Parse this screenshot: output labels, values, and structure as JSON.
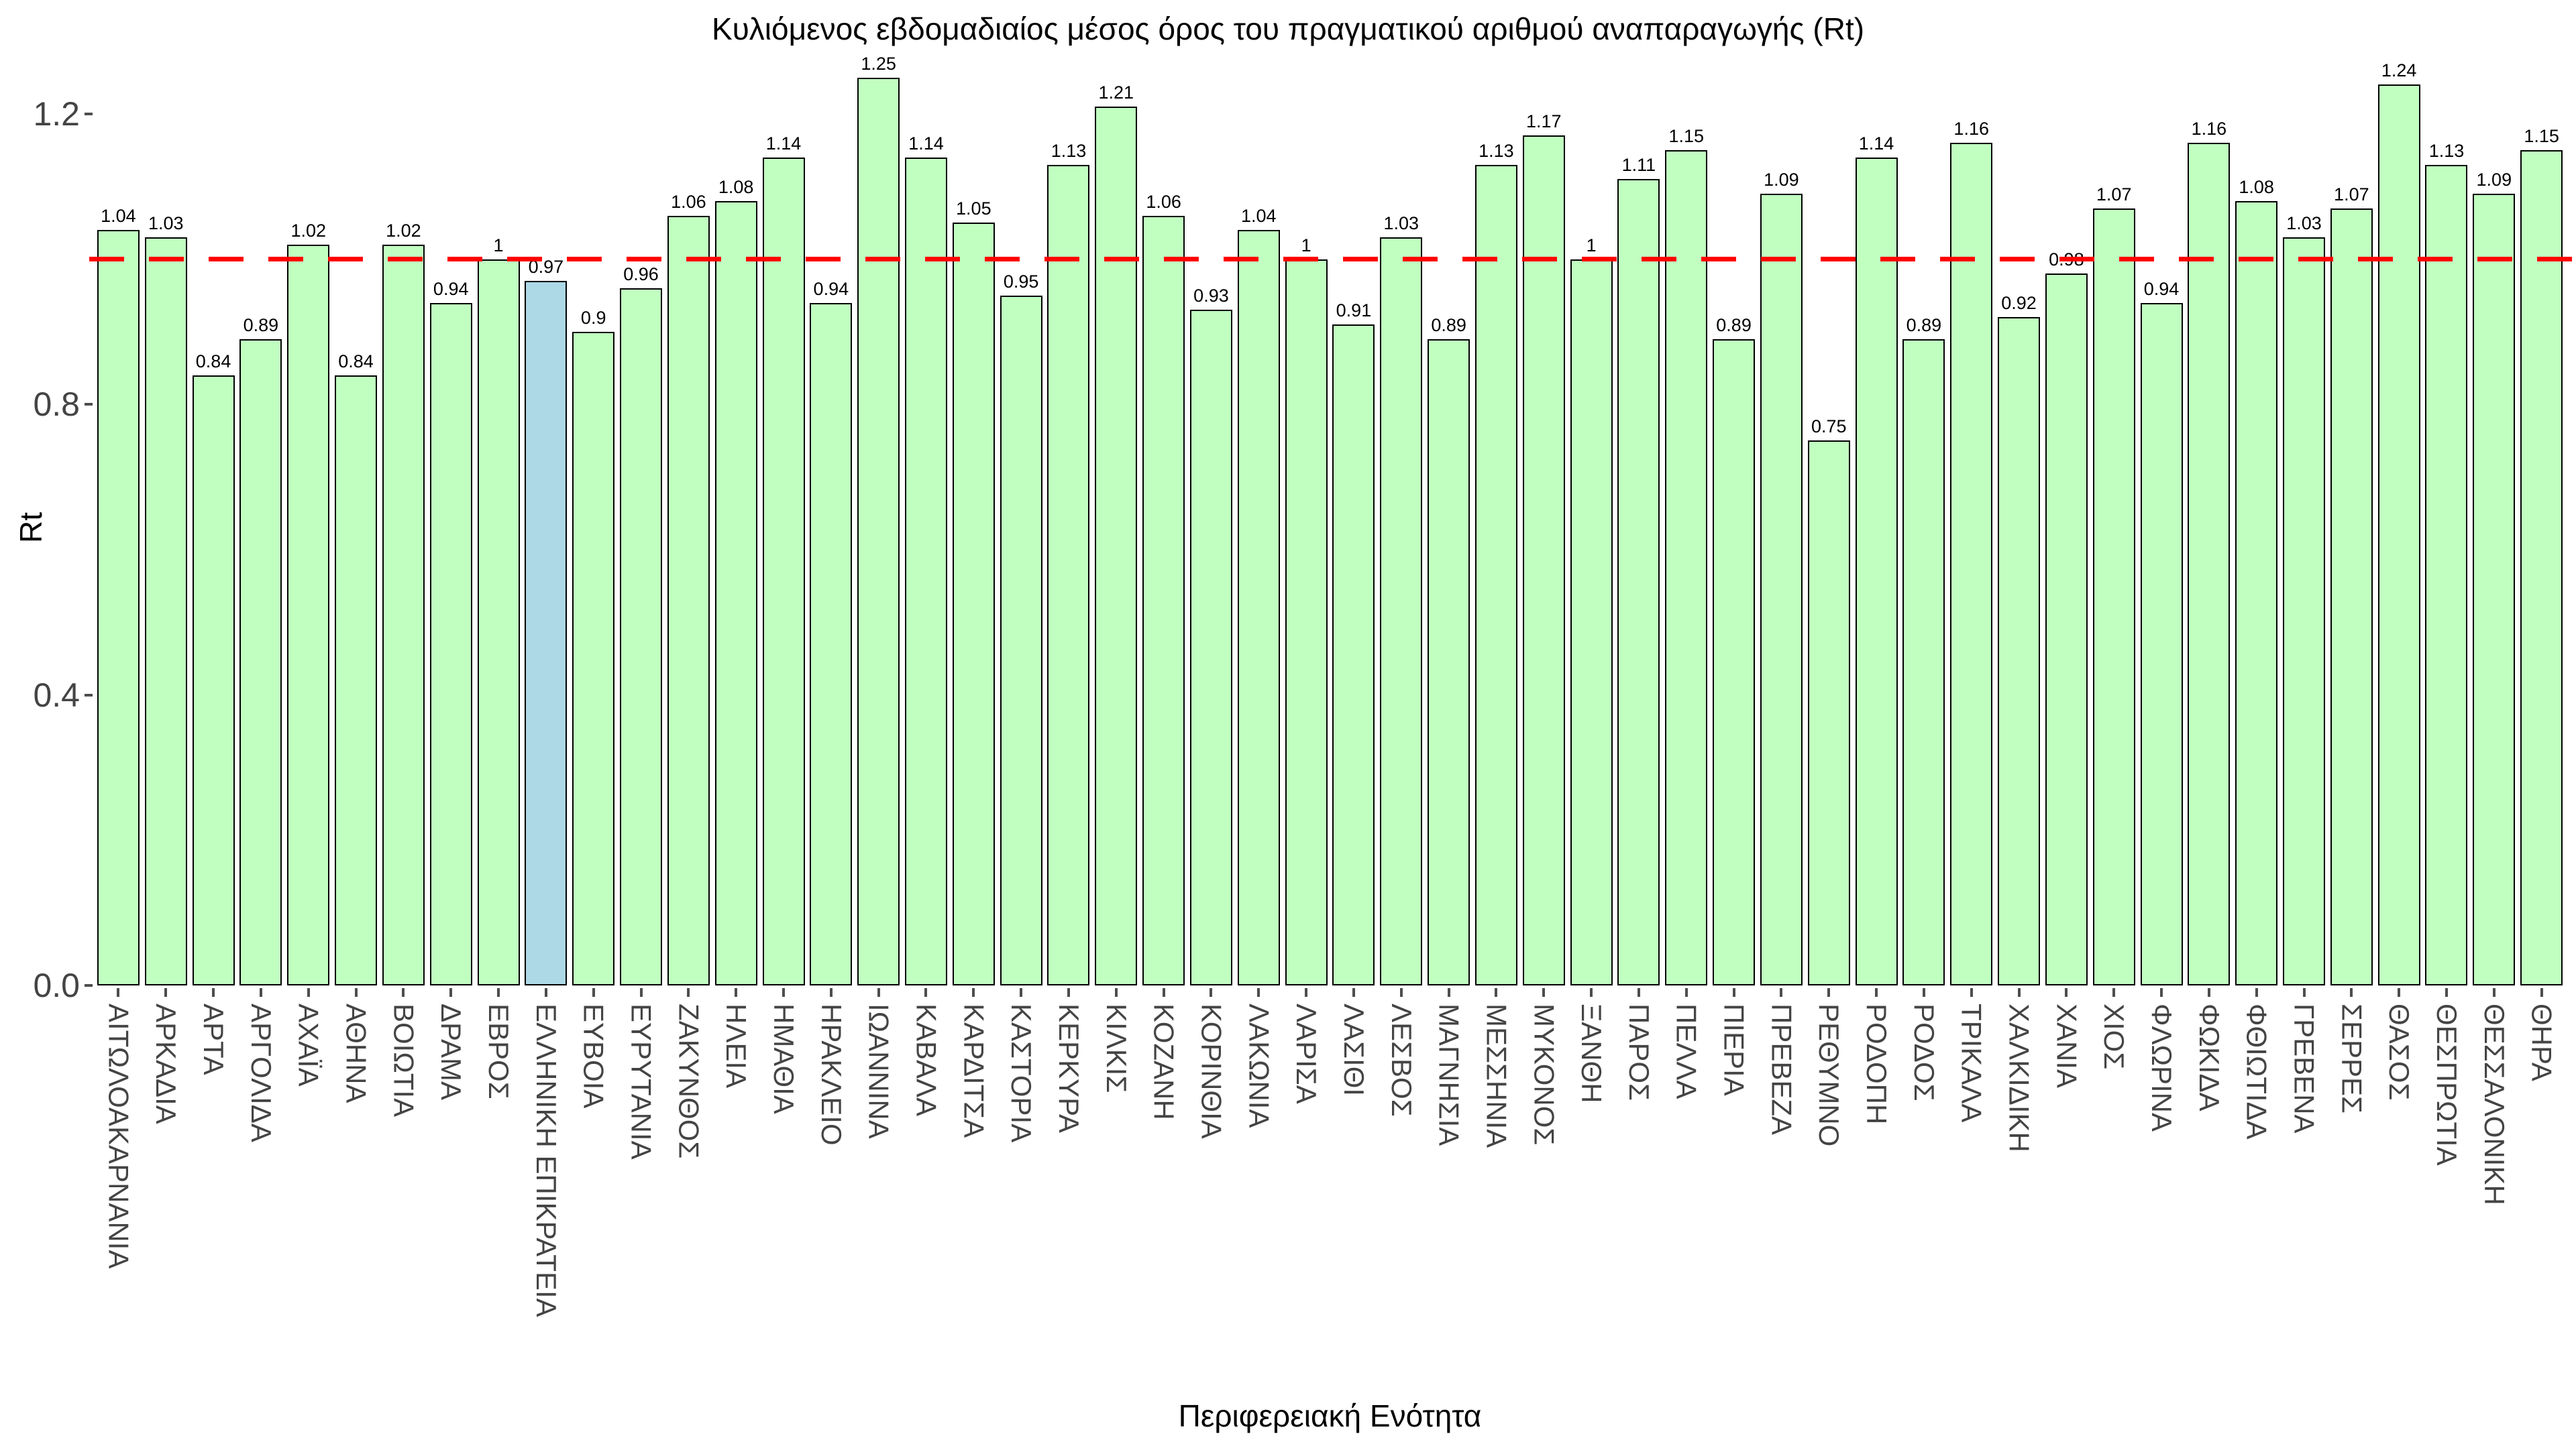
{
  "chart_data": {
    "type": "bar",
    "title": "Κυλιόμενος εβδομαδιαίος μέσος όρος του πραγματικού αριθμού αναπαραγωγής (Rt)",
    "xlabel": "Περιφερειακή Ενότητα",
    "ylabel": "Rt",
    "ylim": [
      0,
      1.3
    ],
    "yticks": [
      0.0,
      0.4,
      0.8,
      1.2
    ],
    "grid": "off",
    "legend": "none",
    "bar_color": "#c1ffc1",
    "bar_border_color": "#000000",
    "highlight_color": "#add8e6",
    "highlight_category": "ΕΛΛΗΝΙΚΗ ΕΠΙΚΡΑΤΕΙΑ",
    "reference_line": {
      "value": 1,
      "color": "#ff0000",
      "style": "dashed"
    },
    "categories": [
      "ΑΙΤΩΛΟΑΚΑΡΝΑΝΙΑ",
      "ΑΡΚΑΔΙΑ",
      "ΑΡΤΑ",
      "ΑΡΓΟΛΙΔΑ",
      "ΑΧΑΪΑ",
      "ΑΘΗΝΑ",
      "ΒΟΙΩΤΙΑ",
      "ΔΡΑΜΑ",
      "ΕΒΡΟΣ",
      "ΕΛΛΗΝΙΚΗ ΕΠΙΚΡΑΤΕΙΑ",
      "ΕΥΒΟΙΑ",
      "ΕΥΡΥΤΑΝΙΑ",
      "ΖΑΚΥΝΘΟΣ",
      "ΗΛΕΙΑ",
      "ΗΜΑΘΙΑ",
      "ΗΡΑΚΛΕΙΟ",
      "ΙΩΑΝΝΙΝΑ",
      "ΚΑΒΑΛΑ",
      "ΚΑΡΔΙΤΣΑ",
      "ΚΑΣΤΟΡΙΑ",
      "ΚΕΡΚΥΡΑ",
      "ΚΙΛΚΙΣ",
      "ΚΟΖΑΝΗ",
      "ΚΟΡΙΝΘΙΑ",
      "ΛΑΚΩΝΙΑ",
      "ΛΑΡΙΣΑ",
      "ΛΑΣΙΘΙ",
      "ΛΕΣΒΟΣ",
      "ΜΑΓΝΗΣΙΑ",
      "ΜΕΣΣΗΝΙΑ",
      "ΜΥΚΟΝΟΣ",
      "ΞΑΝΘΗ",
      "ΠΑΡΟΣ",
      "ΠΕΛΛΑ",
      "ΠΙΕΡΙΑ",
      "ΠΡΕΒΕΖΑ",
      "ΡΕΘΥΜΝΟ",
      "ΡΟΔΟΠΗ",
      "ΡΟΔΟΣ",
      "ΤΡΙΚΑΛΑ",
      "ΧΑΛΚΙΔΙΚΗ",
      "ΧΑΝΙΑ",
      "ΧΙΟΣ",
      "ΦΛΩΡΙΝΑ",
      "ΦΩΚΙΔΑ",
      "ΦΘΙΩΤΙΔΑ",
      "ΓΡΕΒΕΝΑ",
      "ΣΕΡΡΕΣ",
      "ΘΑΣΟΣ",
      "ΘΕΣΠΡΩΤΙΑ",
      "ΘΕΣΣΑΛΟΝΙΚΗ",
      "ΘΗΡΑ"
    ],
    "values": [
      1.04,
      1.03,
      0.84,
      0.89,
      1.02,
      0.84,
      1.02,
      0.94,
      1,
      0.97,
      0.9,
      0.96,
      1.06,
      1.08,
      1.14,
      0.94,
      1.25,
      1.14,
      1.05,
      0.95,
      1.13,
      1.21,
      1.06,
      0.93,
      1.04,
      1,
      0.91,
      1.03,
      0.89,
      1.13,
      1.17,
      1,
      1.11,
      1.15,
      0.89,
      1.09,
      0.75,
      1.14,
      0.89,
      1.16,
      0.92,
      0.98,
      1.07,
      0.94,
      1.16,
      1.08,
      1.03,
      1.07,
      1.24,
      1.13,
      1.09,
      1.15
    ]
  }
}
